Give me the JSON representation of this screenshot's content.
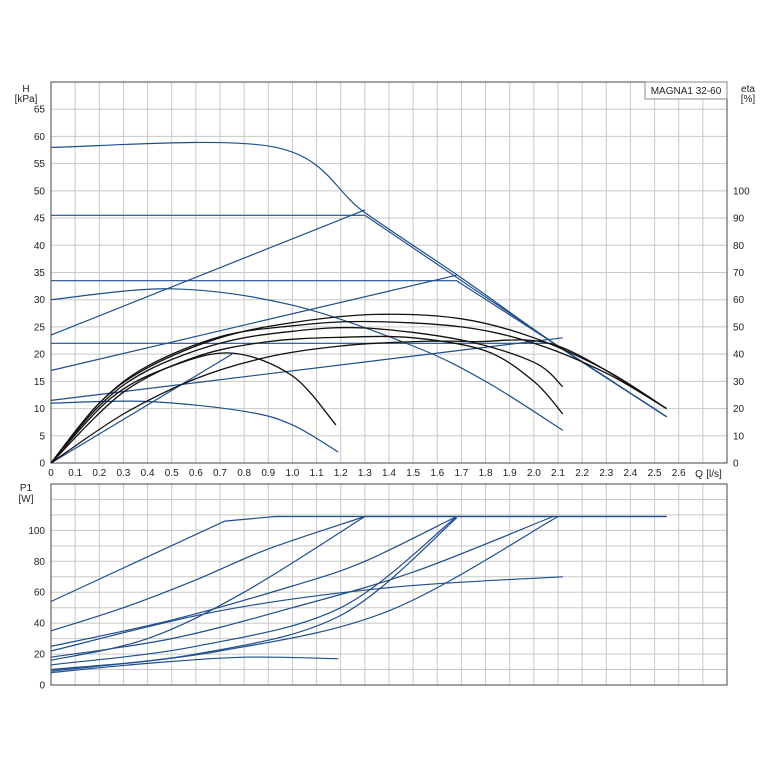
{
  "chart_data": [
    {
      "type": "line",
      "title": "MAGNA1 32-60",
      "ylabel_left": "H",
      "ylabel_left_unit": "[kPa]",
      "ylabel_right": "eta",
      "ylabel_right_unit": "[%]",
      "xlabel": "Q",
      "xlabel_unit": "[l/s]",
      "xlim": [
        0,
        2.8
      ],
      "ylim": [
        0,
        70
      ],
      "eta_lim": [
        0,
        140
      ],
      "x_ticks": [
        "0",
        "0.1",
        "0.2",
        "0.3",
        "0.4",
        "0.5",
        "0.6",
        "0.7",
        "0.8",
        "0.9",
        "1.0",
        "1.1",
        "1.2",
        "1.3",
        "1.4",
        "1.5",
        "1.6",
        "1.7",
        "1.8",
        "1.9",
        "2.0",
        "2.1",
        "2.2",
        "2.3",
        "2.4",
        "2.5",
        "2.6"
      ],
      "y_ticks": [
        "0",
        "5",
        "10",
        "15",
        "20",
        "25",
        "30",
        "35",
        "40",
        "45",
        "50",
        "55",
        "60",
        "65"
      ],
      "eta_ticks": [
        "0",
        "10",
        "20",
        "30",
        "40",
        "50",
        "60",
        "70",
        "80",
        "90",
        "100"
      ],
      "grid": true,
      "series": [
        {
          "color": "#1f4e8c",
          "x": [
            0,
            0.93,
            1.3,
            1.7,
            2.1,
            2.55
          ],
          "y": [
            58,
            58,
            46,
            34,
            21.5,
            8.5
          ]
        },
        {
          "color": "#1f4e8c",
          "x": [
            0,
            1.3,
            2.1,
            2.55
          ],
          "y": [
            45.5,
            45.5,
            21.5,
            8.5
          ]
        },
        {
          "color": "#1f4e8c",
          "x": [
            0,
            1.68,
            2.1,
            2.55
          ],
          "y": [
            33.5,
            33.5,
            21.5,
            8.5
          ]
        },
        {
          "color": "#1f4e8c",
          "x": [
            0,
            2.08,
            2.55
          ],
          "y": [
            22,
            22,
            8.5
          ]
        },
        {
          "color": "#1f4e8c",
          "x": [
            0,
            0.5,
            1.0,
            1.5,
            1.8,
            2.12
          ],
          "y": [
            30,
            32,
            29,
            21.5,
            15,
            6
          ]
        },
        {
          "color": "#1f4e8c",
          "x": [
            0,
            0.4,
            0.8,
            1.0,
            1.19
          ],
          "y": [
            11,
            11.3,
            9.5,
            7,
            2
          ]
        },
        {
          "color": "#1f4e8c",
          "x": [
            0,
            1.3
          ],
          "y": [
            23.5,
            46.5
          ]
        },
        {
          "color": "#1f4e8c",
          "x": [
            0,
            1.68
          ],
          "y": [
            17,
            34.5
          ]
        },
        {
          "color": "#1f4e8c",
          "x": [
            0,
            2.12
          ],
          "y": [
            11.5,
            23
          ]
        },
        {
          "color": "#1f4e8c",
          "x": [
            0,
            0.75
          ],
          "y": [
            0,
            20
          ]
        },
        {
          "color": "#111111",
          "x": [
            0,
            0.2,
            0.4,
            0.7,
            1.0,
            1.35,
            1.7,
            2.0,
            2.3,
            2.55
          ],
          "y": [
            0,
            11,
            17.5,
            23,
            25.8,
            27.3,
            26.5,
            23,
            17,
            10
          ]
        },
        {
          "color": "#111111",
          "x": [
            0,
            0.2,
            0.4,
            0.7,
            1.0,
            1.3,
            1.7,
            2.0,
            2.3,
            2.55
          ],
          "y": [
            0,
            11,
            17.8,
            23.2,
            25.2,
            26,
            25,
            22,
            16.5,
            10
          ]
        },
        {
          "color": "#111111",
          "x": [
            0,
            0.2,
            0.4,
            0.7,
            1.0,
            1.3,
            1.7,
            2.0,
            2.12
          ],
          "y": [
            0,
            10.5,
            17,
            22,
            24.2,
            24.8,
            22.6,
            18.5,
            14
          ]
        },
        {
          "color": "#111111",
          "x": [
            0,
            0.3,
            0.6,
            0.9,
            1.2,
            1.5,
            1.8,
            2.0,
            2.12
          ],
          "y": [
            0,
            13,
            19.5,
            22.3,
            23.1,
            23,
            20.6,
            15,
            9
          ]
        },
        {
          "color": "#111111",
          "x": [
            0,
            0.25,
            0.5,
            0.75,
            1.0,
            1.18
          ],
          "y": [
            0,
            12,
            17.8,
            20.2,
            16,
            7
          ]
        },
        {
          "color": "#111111",
          "x": [
            0,
            0.3,
            0.6,
            0.9,
            1.2,
            1.5,
            1.75,
            2.1,
            2.55
          ],
          "y": [
            0,
            9,
            15.5,
            19.5,
            21.5,
            22.3,
            22.3,
            21.5,
            10
          ]
        }
      ]
    },
    {
      "type": "line",
      "ylabel": "P1",
      "ylabel_unit": "[W]",
      "xlim": [
        0,
        2.8
      ],
      "ylim": [
        0,
        130
      ],
      "y_ticks": [
        "0",
        "20",
        "40",
        "60",
        "80",
        "100"
      ],
      "grid": true,
      "series": [
        {
          "color": "#1f4e8c",
          "x": [
            0,
            0.72,
            0.93,
            2.55
          ],
          "y": [
            54,
            106,
            109,
            109
          ]
        },
        {
          "color": "#1f4e8c",
          "x": [
            0,
            0.3,
            0.6,
            0.9,
            1.3
          ],
          "y": [
            35,
            50,
            68,
            88,
            109
          ]
        },
        {
          "color": "#1f4e8c",
          "x": [
            0,
            0.5,
            1.0,
            1.3,
            1.68
          ],
          "y": [
            25,
            42,
            64,
            80,
            109
          ]
        },
        {
          "color": "#1f4e8c",
          "x": [
            0,
            0.5,
            1.0,
            1.5,
            2.08
          ],
          "y": [
            18,
            30,
            50,
            73,
            109
          ]
        },
        {
          "color": "#1f4e8c",
          "x": [
            0,
            0.6,
            1.2,
            1.68
          ],
          "y": [
            13,
            25,
            50,
            109
          ]
        },
        {
          "color": "#1f4e8c",
          "x": [
            0,
            0.6,
            1.2,
            1.68
          ],
          "y": [
            10,
            20,
            45,
            108
          ]
        },
        {
          "color": "#1f4e8c",
          "x": [
            0,
            0.4,
            0.8,
            1.3
          ],
          "y": [
            16,
            30,
            60,
            109
          ]
        },
        {
          "color": "#1f4e8c",
          "x": [
            0,
            0.7,
            1.4,
            2.1
          ],
          "y": [
            9,
            22,
            48,
            109
          ]
        },
        {
          "color": "#1f4e8c",
          "x": [
            0,
            0.7,
            1.4,
            2.12
          ],
          "y": [
            22,
            48,
            63,
            70
          ]
        },
        {
          "color": "#1f4e8c",
          "x": [
            0,
            0.4,
            0.8,
            1.19
          ],
          "y": [
            8,
            14,
            18,
            17
          ]
        }
      ]
    }
  ]
}
